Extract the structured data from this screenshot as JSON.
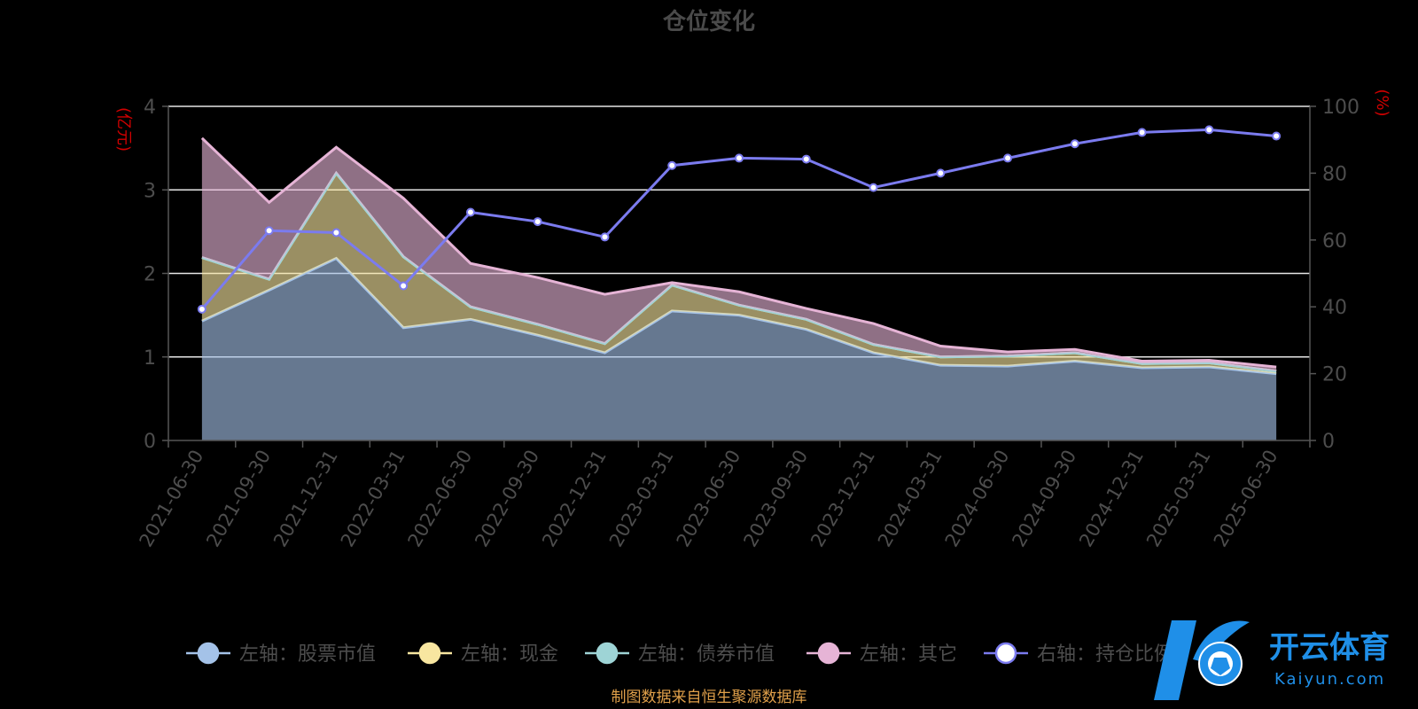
{
  "chart_data": {
    "type": "area",
    "title": "仓位变化",
    "left_axis_unit": "(亿元)",
    "right_axis_unit": "(%)",
    "ylim_left": [
      0,
      4
    ],
    "yticks_left": [
      0,
      1,
      2,
      3,
      4
    ],
    "ylim_right": [
      0,
      100
    ],
    "yticks_right": [
      0,
      20,
      40,
      60,
      80,
      100
    ],
    "grid": true,
    "legend_position": "bottom",
    "categories": [
      "2021-06-30",
      "2021-09-30",
      "2021-12-31",
      "2022-03-31",
      "2022-06-30",
      "2022-09-30",
      "2022-12-31",
      "2023-03-31",
      "2023-06-30",
      "2023-09-30",
      "2023-12-31",
      "2024-03-31",
      "2024-06-30",
      "2024-09-30",
      "2024-12-31",
      "2025-03-31",
      "2025-06-30"
    ],
    "series": [
      {
        "name": "左轴：股票市值",
        "axis": "left",
        "type": "stacked-area",
        "color": "#a4c2e8",
        "values": [
          1.43,
          1.8,
          2.18,
          1.35,
          1.45,
          1.26,
          1.05,
          1.55,
          1.5,
          1.33,
          1.05,
          0.9,
          0.89,
          0.95,
          0.87,
          0.88,
          0.8
        ]
      },
      {
        "name": "左轴：现金",
        "axis": "left",
        "type": "stacked-area",
        "color": "#f8e6a0",
        "values": [
          0.76,
          0.13,
          1.02,
          0.85,
          0.15,
          0.13,
          0.11,
          0.31,
          0.12,
          0.12,
          0.1,
          0.1,
          0.12,
          0.1,
          0.05,
          0.05,
          0.03
        ]
      },
      {
        "name": "左轴：债券市值",
        "axis": "left",
        "type": "stacked-area",
        "color": "#9ed4d6",
        "values": [
          0,
          0,
          0,
          0,
          0,
          0,
          0,
          0,
          0,
          0,
          0,
          0,
          0,
          0,
          0,
          0,
          0
        ]
      },
      {
        "name": "左轴：其它",
        "axis": "left",
        "type": "stacked-area",
        "color": "#e6b4d6",
        "values": [
          1.43,
          0.92,
          0.31,
          0.7,
          0.52,
          0.56,
          0.59,
          0.03,
          0.16,
          0.13,
          0.25,
          0.13,
          0.05,
          0.04,
          0.03,
          0.03,
          0.05
        ]
      },
      {
        "name": "右轴：持仓比例",
        "axis": "right",
        "type": "line",
        "color": "#7b7bef",
        "values": [
          39.3,
          62.8,
          62.2,
          46.3,
          68.3,
          65.5,
          60.9,
          82.3,
          84.5,
          84.2,
          75.7,
          80,
          84.5,
          88.8,
          92.2,
          93,
          91.1
        ]
      }
    ]
  },
  "source_note": "制图数据来自恒生聚源数据库",
  "watermark": {
    "brand": "开云体育",
    "domain": "Kaiyun.com"
  }
}
